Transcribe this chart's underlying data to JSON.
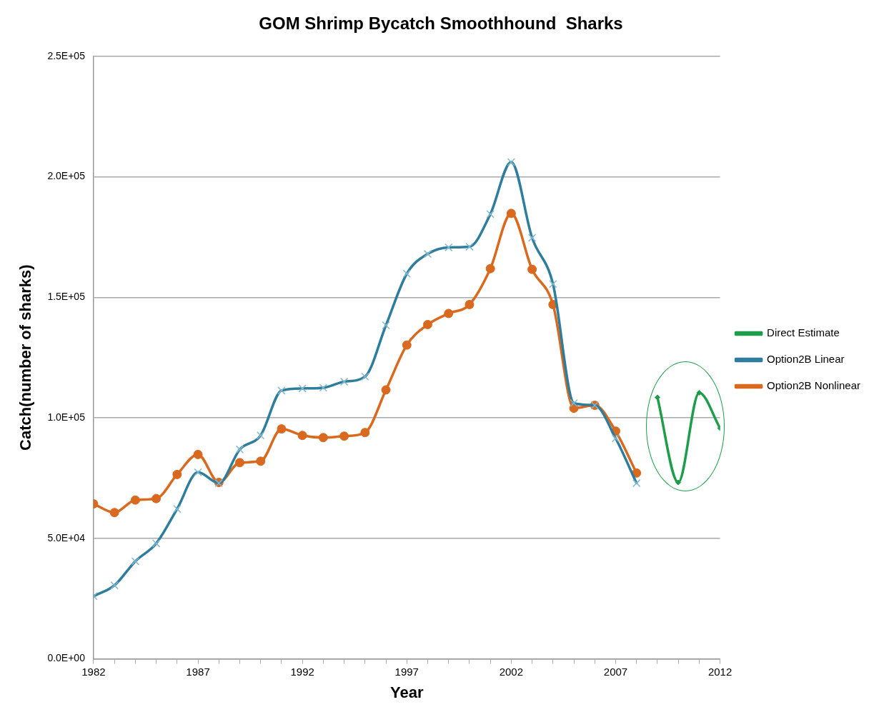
{
  "chart_data": {
    "type": "line",
    "title": "GOM Shrimp Bycatch Smoothhound  Sharks",
    "xlabel": "Year",
    "ylabel": "Catch(number of sharks)",
    "xlim": [
      1982,
      2012
    ],
    "xticks": [
      1982,
      {
        "value": 1983,
        "label": null
      },
      {
        "value": 1984,
        "label": null
      },
      {
        "value": 1985,
        "label": null
      },
      {
        "value": 1986,
        "label": null
      },
      1987,
      {
        "value": 1988,
        "label": null
      },
      {
        "value": 1989,
        "label": null
      },
      {
        "value": 1990,
        "label": null
      },
      {
        "value": 1991,
        "label": null
      },
      1992,
      {
        "value": 1993,
        "label": null
      },
      {
        "value": 1994,
        "label": null
      },
      {
        "value": 1995,
        "label": null
      },
      {
        "value": 1996,
        "label": null
      },
      1997,
      {
        "value": 1998,
        "label": null
      },
      {
        "value": 1999,
        "label": null
      },
      {
        "value": 2000,
        "label": null
      },
      {
        "value": 2001,
        "label": null
      },
      2002,
      {
        "value": 2003,
        "label": null
      },
      {
        "value": 2004,
        "label": null
      },
      {
        "value": 2005,
        "label": null
      },
      {
        "value": 2006,
        "label": null
      },
      2007,
      {
        "value": 2008,
        "label": null
      },
      {
        "value": 2009,
        "label": null
      },
      {
        "value": 2010,
        "label": null
      },
      {
        "value": 2011,
        "label": null
      },
      2012
    ],
    "ylim": [
      0,
      250000
    ],
    "yticks": [
      {
        "value": 0,
        "label": "0.0E+00"
      },
      {
        "value": 50000,
        "label": "5.0E+04"
      },
      {
        "value": 100000,
        "label": "1.0E+05"
      },
      {
        "value": 150000,
        "label": "1.5E+05"
      },
      {
        "value": 200000,
        "label": "2.0E+05"
      },
      {
        "value": 250000,
        "label": "2.5E+05"
      }
    ],
    "grid": "y",
    "legend": "right",
    "series": [
      {
        "name": "Direct Estimate",
        "color": "#1e9e4a",
        "marker": "diamond",
        "x": [
          2009,
          2010,
          2011,
          2012
        ],
        "values": [
          108500,
          73200,
          110400,
          95700
        ]
      },
      {
        "name": "Option2B Linear",
        "color": "#2e7d9c",
        "marker": "cross",
        "x": [
          1982,
          1983,
          1984,
          1985,
          1986,
          1987,
          1988,
          1989,
          1990,
          1991,
          1992,
          1993,
          1994,
          1995,
          1996,
          1997,
          1998,
          1999,
          2000,
          2001,
          2002,
          2003,
          2004,
          2005,
          2006,
          2007,
          2008
        ],
        "values": [
          26000,
          30500,
          40500,
          47900,
          62200,
          77400,
          72900,
          86900,
          92700,
          111300,
          112200,
          112500,
          115000,
          117100,
          138400,
          159800,
          168000,
          170700,
          171000,
          184500,
          206100,
          174700,
          155500,
          106100,
          105200,
          91500,
          72900
        ]
      },
      {
        "name": "Option2B Nonlinear",
        "color": "#d8691e",
        "marker": "circle",
        "x": [
          1982,
          1983,
          1984,
          1985,
          1986,
          1987,
          1988,
          1989,
          1990,
          1991,
          1992,
          1993,
          1994,
          1995,
          1996,
          1997,
          1998,
          1999,
          2000,
          2001,
          2002,
          2003,
          2004,
          2005,
          2006,
          2007,
          2008
        ],
        "values": [
          64300,
          60700,
          65900,
          66500,
          76500,
          84800,
          73200,
          81400,
          82000,
          95400,
          92700,
          91800,
          92400,
          93900,
          111600,
          130200,
          138700,
          143300,
          147000,
          161900,
          184800,
          161600,
          147000,
          104000,
          105200,
          94500,
          77100
        ]
      }
    ]
  }
}
